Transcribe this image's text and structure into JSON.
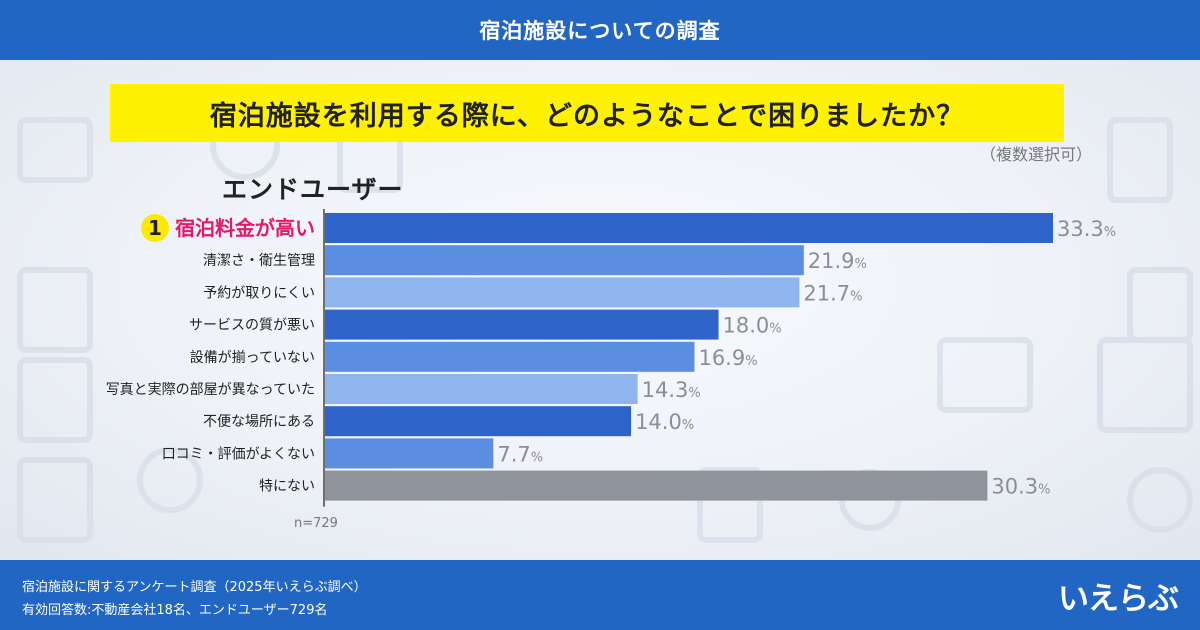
{
  "header": {
    "title": "宿泊施設についての調査"
  },
  "question": {
    "text": "宿泊施設を利用する際に、どのようなことで困りましたか？",
    "note": "（複数選択可）"
  },
  "group_title": "エンドユーザー",
  "sample_size": "n=729",
  "colors": {
    "header_bg": "#2166c3",
    "question_bg": "#fff200",
    "highlight_text": "#e6186c",
    "rank_badge": "#ffe800",
    "bar_dark": "#2e63c8",
    "bar_mid": "#5b8de0",
    "bar_light": "#8fb4ee",
    "bar_gray": "#8f949c",
    "value_text": "#8a8f96"
  },
  "chart_data": {
    "type": "bar",
    "orientation": "horizontal",
    "unit": "%",
    "xlim": [
      0,
      33.3
    ],
    "categories": [
      "宿泊料金が高い",
      "清潔さ・衛生管理",
      "予約が取りにくい",
      "サービスの質が悪い",
      "設備が揃っていない",
      "写真と実際の部屋が異なっていた",
      "不便な場所にある",
      "口コミ・評価がよくない",
      "特にない"
    ],
    "values": [
      33.3,
      21.9,
      21.7,
      18.0,
      16.9,
      14.3,
      14.0,
      7.7,
      30.3
    ],
    "value_labels": [
      "33.3",
      "21.9",
      "21.7",
      "18.0",
      "16.9",
      "14.3",
      "14.0",
      "7.7",
      "30.3"
    ],
    "bar_colors": [
      "#2e63c8",
      "#5b8de0",
      "#8fb4ee",
      "#2e63c8",
      "#5b8de0",
      "#8fb4ee",
      "#2e63c8",
      "#5b8de0",
      "#8f949c"
    ],
    "highlight": {
      "index": 0,
      "rank_label": "1"
    }
  },
  "footer": {
    "source": "宿泊施設に関するアンケート調査（2025年いえらぶ調べ）",
    "respondents": "有効回答数:不動産会社18名、エンドユーザー729名",
    "logo": "いえらぶ"
  }
}
